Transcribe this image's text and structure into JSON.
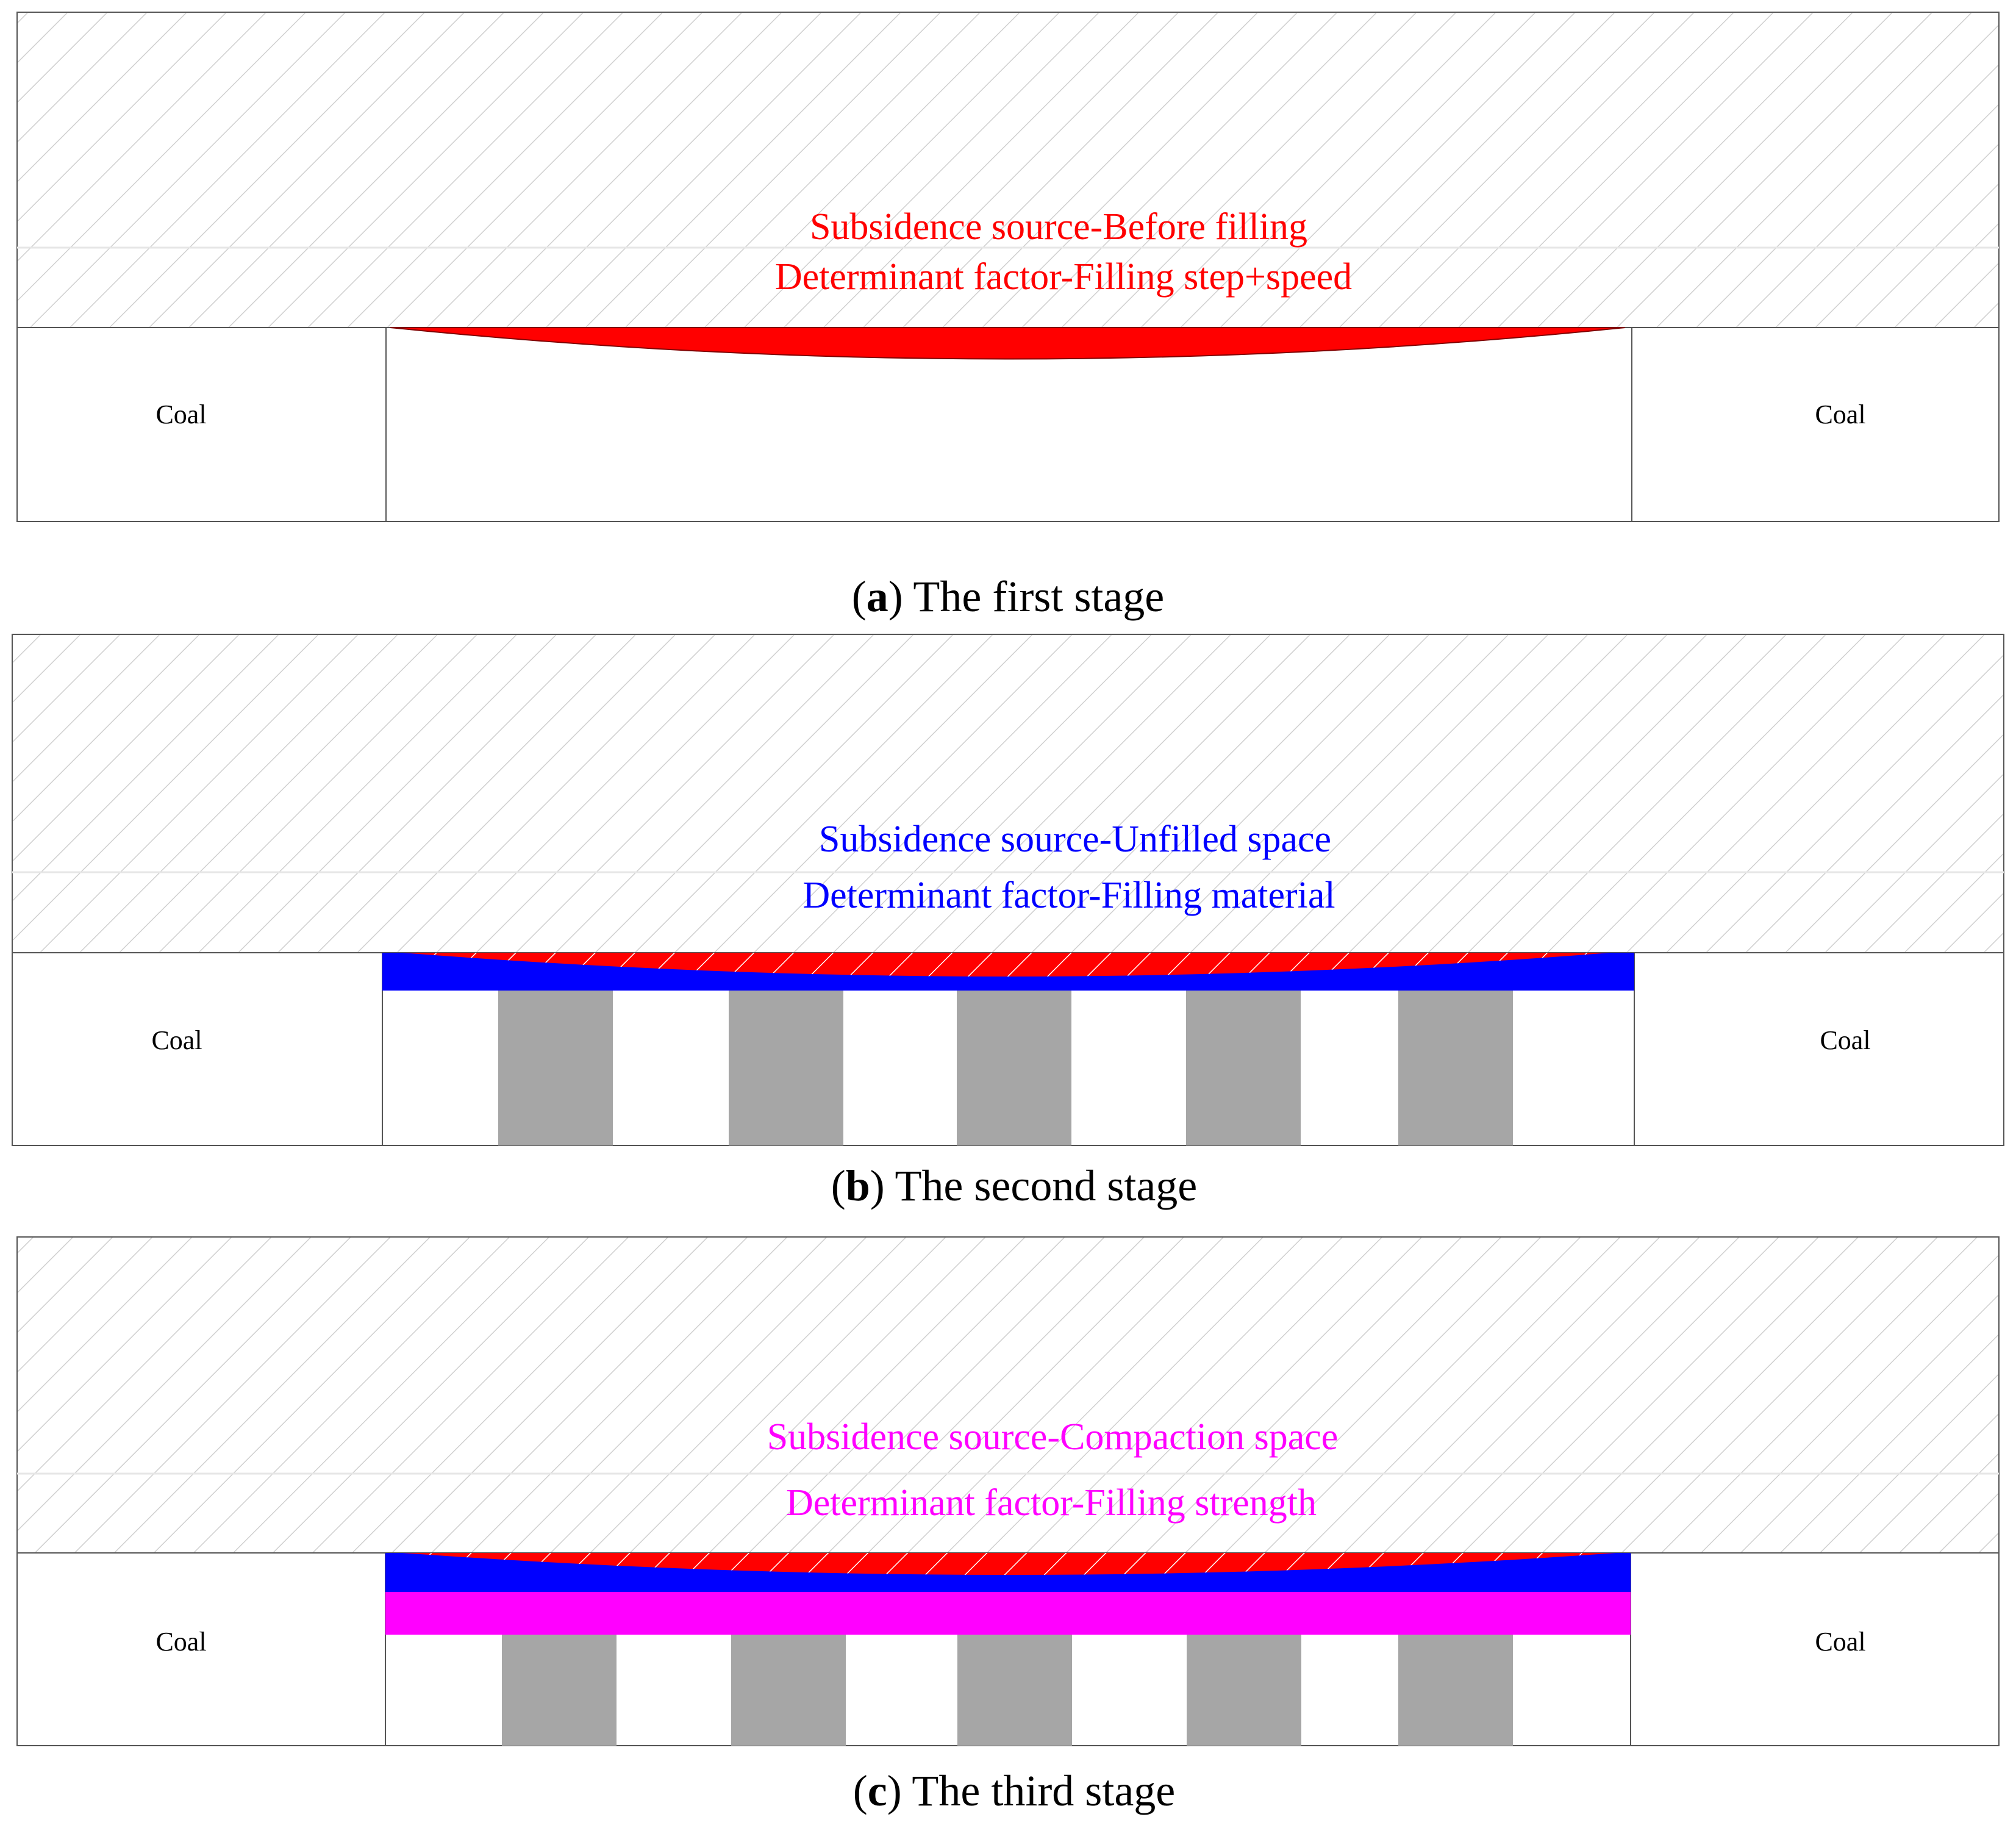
{
  "colors": {
    "rock_hatch": "#cfcfcf",
    "red": "#ff0000",
    "blue": "#0000ff",
    "magenta": "#ff00ff",
    "gray": "#a6a6a6",
    "text_black": "#000000"
  },
  "panels": [
    {
      "id": "a",
      "caption_letter": "a",
      "caption_open": "(",
      "caption_close": ")",
      "caption_text": " The first stage",
      "line1": "Subsidence source-Before filling",
      "line2": "Determinant factor-Filling step+speed",
      "text_color": "#ff0000",
      "coal_left": "Coal",
      "coal_right": "Coal"
    },
    {
      "id": "b",
      "caption_letter": "b",
      "caption_open": "(",
      "caption_close": ")",
      "caption_text": " The second stage",
      "line1": "Subsidence source-Unfilled space",
      "line2": "Determinant factor-Filling material",
      "text_color": "#0000ff",
      "coal_left": "Coal",
      "coal_right": "Coal"
    },
    {
      "id": "c",
      "caption_letter": "c",
      "caption_open": "(",
      "caption_close": ")",
      "caption_text": " The third stage",
      "line1": "Subsidence source-Compaction space",
      "line2": "Determinant factor-Filling strength",
      "text_color": "#ff00ff",
      "coal_left": "Coal",
      "coal_right": "Coal"
    }
  ]
}
